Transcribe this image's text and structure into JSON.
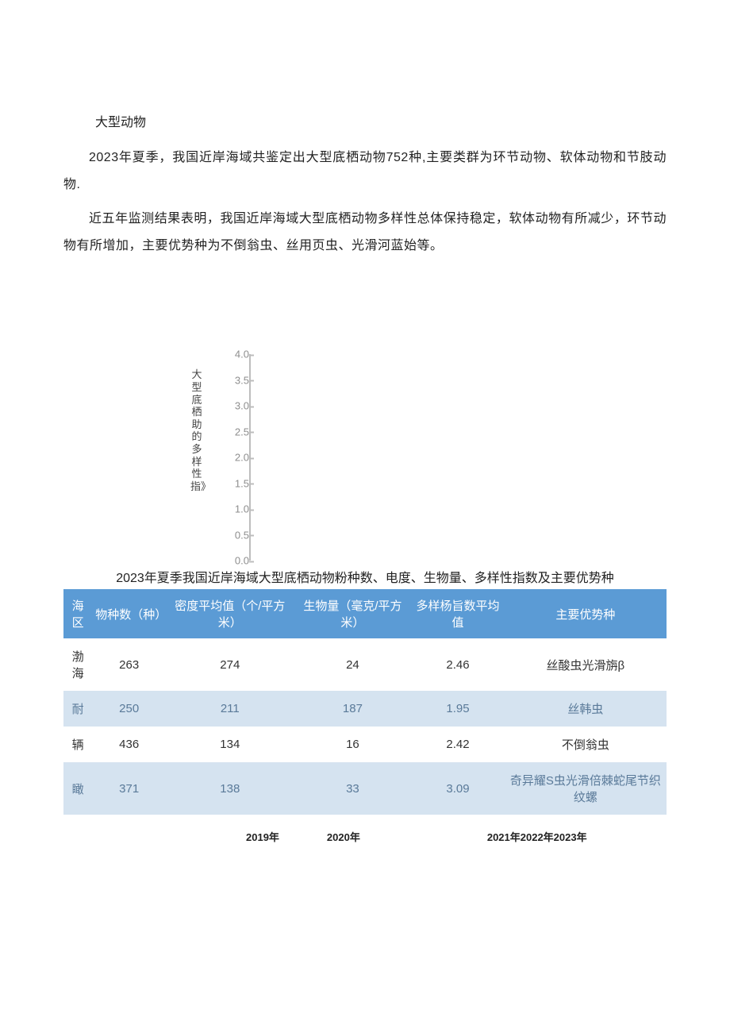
{
  "section_title": "大型动物",
  "paragraph1": "2023年夏季，我国近岸海域共鉴定出大型底栖动物752种,主要类群为环节动物、软体动物和节肢动物.",
  "paragraph2": "近五年监测结果表明，我国近岸海域大型底栖动物多样性总体保持稳定，软体动物有所减少，环节动物有所增加，主要优势种为不倒翁虫、丝用页虫、光滑河蓝始等。",
  "chart": {
    "ylabel": "大型底栖助的多样性指》",
    "ylim": [
      0.0,
      4.0
    ],
    "ytick_step": 0.5,
    "ticks": [
      "4.0",
      "3.5",
      "3.0",
      "2.5",
      "2.0",
      "1.5",
      "1.0",
      "0.5",
      "0.0"
    ],
    "tick_color": "#8e8e8e",
    "axis_color": "#bdbdbd",
    "label_fontsize": 13
  },
  "table": {
    "title": "2023年夏季我国近岸海域大型底栖动物粉种数、电度、生物量、多样性指数及主要优势种",
    "header_bg": "#5b9bd5",
    "header_fg": "#ffffff",
    "alt_row_bg": "#d5e3f0",
    "alt_row_fg": "#5a7a99",
    "columns": [
      "海区",
      "物种数（种）",
      "密度平均值（个/平方米）",
      "生物量（毫克/平方米）",
      "多样杨旨数平均值",
      "主要优势种"
    ],
    "rows": [
      {
        "cells": [
          "渤海",
          "263",
          "274",
          "24",
          "2.46",
          "丝酸虫光滑旃β"
        ],
        "alt": false
      },
      {
        "cells": [
          "耐",
          "250",
          "211",
          "187",
          "1.95",
          "丝韩虫"
        ],
        "alt": true
      },
      {
        "cells": [
          "辆",
          "436",
          "134",
          "16",
          "2.42",
          "不倒翁虫"
        ],
        "alt": false
      },
      {
        "cells": [
          "瞰",
          "371",
          "138",
          "33",
          "3.09",
          "奇异耀S虫光滑倍棘蛇尾节织纹螺"
        ],
        "alt": true
      }
    ]
  },
  "xaxis": {
    "labels": [
      "2019年",
      "2020年",
      "2021年2022年2023年"
    ]
  }
}
